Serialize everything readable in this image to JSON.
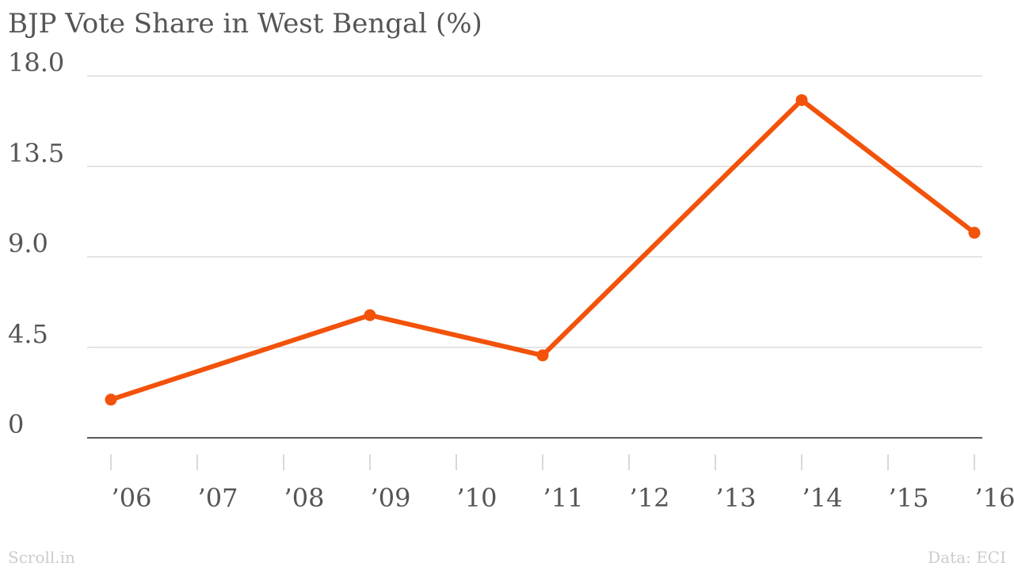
{
  "chart_data": {
    "type": "line",
    "title": "BJP Vote Share in West Bengal (%)",
    "categories": [
      "’06",
      "’07",
      "’08",
      "’09",
      "’10",
      "’11",
      "’12",
      "’13",
      "’14",
      "’15",
      "’16"
    ],
    "x": [
      "’06",
      "’09",
      "’11",
      "’14",
      "’16"
    ],
    "y_ticks": [
      "0",
      "4.5",
      "9.0",
      "13.5",
      "18.0"
    ],
    "ylim": [
      0,
      18
    ],
    "series": [
      {
        "color": "#f2520a",
        "x": [
          "’06",
          "’09",
          "’11",
          "’14",
          "’16"
        ],
        "values": [
          1.9,
          6.1,
          4.1,
          16.8,
          10.2
        ]
      }
    ],
    "grid": true,
    "legend": "none"
  },
  "footer": {
    "source_left": "Scroll.in",
    "source_right": "Data: ECI"
  }
}
